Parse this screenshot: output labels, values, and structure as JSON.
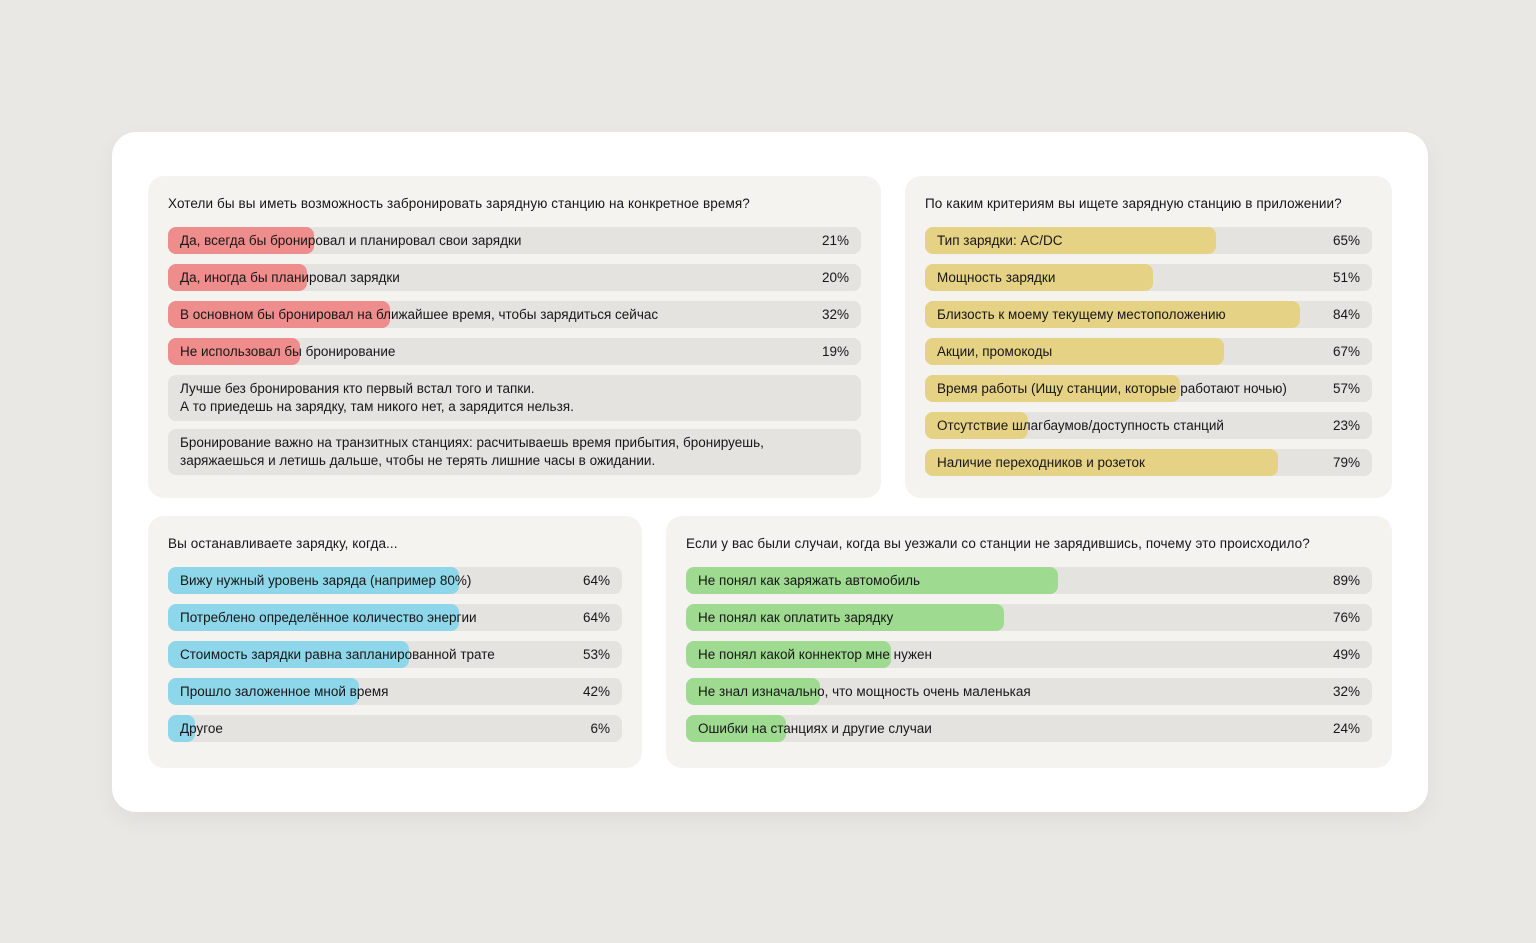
{
  "chart_data": [
    {
      "type": "bar",
      "title": "Хотели бы вы иметь возможность забронировать зарядную станцию на конкретное время?",
      "unit": "%",
      "xlim": [
        0,
        100
      ],
      "bar_color": "#ef8c8c",
      "track_color": "#e5e3e0",
      "bar_scale": 1,
      "categories": [
        "Да, всегда бы бронировал и планировал свои зарядки",
        "Да, иногда бы планировал зарядки",
        "В основном бы бронировал на ближайшее время, чтобы зарядиться сейчас",
        "Не использовал бы бронирование"
      ],
      "values": [
        21,
        20,
        32,
        19
      ],
      "comments": [
        "Лучше без бронирования кто первый встал того и тапки.\nА то приедешь на зарядку, там никого нет, а зарядится нельзя.",
        "Бронирование важно на транзитных станциях: расчитываешь время прибытия, бронируешь,\nзаряжаешься и летишь дальше, чтобы не терять лишние часы в ожидании."
      ]
    },
    {
      "type": "bar",
      "title": "По каким критериям вы ищете зарядную станцию в приложении?",
      "unit": "%",
      "xlim": [
        0,
        100
      ],
      "bar_color": "#e6d285",
      "track_color": "#e5e3e0",
      "bar_scale": 1,
      "categories": [
        "Тип зарядки: AC/DC",
        "Мощность зарядки",
        "Близость к моему текущему местоположению",
        "Акции, промокоды",
        "Время работы (Ищу станции, которые работают ночью)",
        "Отсутствие шлагбаумов/доступность станций",
        "Наличие переходников и розеток"
      ],
      "values": [
        65,
        51,
        84,
        67,
        57,
        23,
        79
      ],
      "comments": []
    },
    {
      "type": "bar",
      "title": "Вы останавливаете зарядку, когда...",
      "unit": "%",
      "xlim": [
        0,
        100
      ],
      "bar_color": "#8ed6e9",
      "track_color": "#e5e3e0",
      "bar_scale": 1,
      "categories": [
        "Вижу нужный уровень заряда (например 80%)",
        "Потреблено определённое количество энергии",
        "Стоимость зарядки равна запланированной трате",
        "Прошло заложенное мной время",
        "Другое"
      ],
      "values": [
        64,
        64,
        53,
        42,
        6
      ],
      "comments": []
    },
    {
      "type": "bar",
      "title": "Если у вас были случаи, когда вы уезжали со станции не зарядившись, почему это происходило?",
      "unit": "%",
      "xlim": [
        0,
        100
      ],
      "bar_color": "#9eda90",
      "track_color": "#e5e3e0",
      "bar_scale": 0.61,
      "categories": [
        "Не понял как заряжать автомобиль",
        "Не понял как оплатить зарядку",
        "Не понял какой коннектор мне нужен",
        "Не знал изначально, что мощность очень маленькая",
        "Ошибки на станциях и другие случаи"
      ],
      "values": [
        89,
        76,
        49,
        32,
        24
      ],
      "comments": []
    }
  ]
}
